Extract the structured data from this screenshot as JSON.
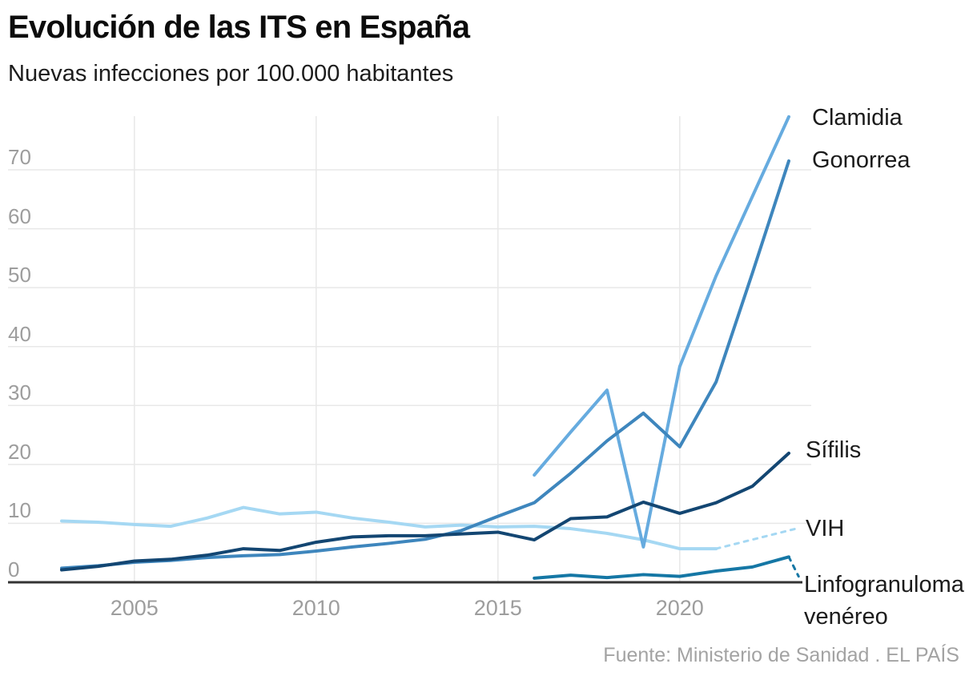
{
  "header": {
    "title": "Evolución de las ITS en España",
    "subtitle": "Nuevas infecciones por 100.000 habitantes"
  },
  "footer": {
    "source": "Fuente: Ministerio de Sanidad . EL PAÍS"
  },
  "chart_data": {
    "type": "line",
    "title": "Evolución de las ITS en España",
    "subtitle": "Nuevas infecciones por 100.000 habitantes",
    "xlabel": "",
    "ylabel": "",
    "ylim": [
      0,
      79
    ],
    "xlim": [
      2003,
      2023.3
    ],
    "grid": true,
    "legend_position": "right-edge-direct-labels",
    "yticks": [
      0,
      10,
      20,
      30,
      40,
      50,
      60,
      70
    ],
    "xticks": [
      2005,
      2010,
      2015,
      2020
    ],
    "style": {
      "grid_color": "#e8e8e8",
      "axis_color": "#333333",
      "tick_label_color": "#9d9d9d",
      "label_color": "#1b1b1b"
    },
    "series": [
      {
        "name": "VIH",
        "label": "VIH",
        "color": "#a5d8f3",
        "x": [
          2003,
          2004,
          2005,
          2006,
          2007,
          2008,
          2009,
          2010,
          2011,
          2012,
          2013,
          2014,
          2015,
          2016,
          2017,
          2018,
          2019,
          2020,
          2021
        ],
        "values": [
          10.4,
          10.2,
          9.8,
          9.5,
          10.9,
          12.7,
          11.6,
          11.9,
          10.9,
          10.2,
          9.4,
          9.7,
          9.4,
          9.5,
          9.1,
          8.3,
          7.2,
          5.7,
          5.7
        ],
        "dashed_extension": {
          "note": "provisional",
          "x": [
            2021,
            2023.2
          ],
          "values": [
            5.7,
            9.1
          ]
        }
      },
      {
        "name": "Clamidia",
        "label": "Clamidia",
        "color": "#66abdf",
        "x": [
          2016,
          2017,
          2018,
          2019,
          2020,
          2021,
          2022,
          2023
        ],
        "values": [
          18.2,
          25.5,
          32.6,
          6.0,
          36.6,
          52.0,
          65.5,
          79.0
        ]
      },
      {
        "name": "Gonorrea",
        "label": "Gonorrea",
        "color": "#3e86bd",
        "x": [
          2003,
          2004,
          2005,
          2006,
          2007,
          2008,
          2009,
          2010,
          2011,
          2012,
          2013,
          2014,
          2015,
          2016,
          2017,
          2018,
          2019,
          2020,
          2021,
          2022,
          2023
        ],
        "values": [
          2.4,
          2.8,
          3.4,
          3.7,
          4.2,
          4.5,
          4.7,
          5.3,
          6.0,
          6.6,
          7.3,
          8.8,
          11.2,
          13.5,
          18.5,
          24.0,
          28.7,
          23.0,
          34.0,
          52.5,
          71.5
        ]
      },
      {
        "name": "Sífilis",
        "label": "Sífilis",
        "color": "#134672",
        "x": [
          2003,
          2004,
          2005,
          2006,
          2007,
          2008,
          2009,
          2010,
          2011,
          2012,
          2013,
          2014,
          2015,
          2016,
          2017,
          2018,
          2019,
          2020,
          2021,
          2022,
          2023
        ],
        "values": [
          2.1,
          2.7,
          3.6,
          3.9,
          4.6,
          5.7,
          5.4,
          6.8,
          7.7,
          7.9,
          7.9,
          8.2,
          8.5,
          7.2,
          10.8,
          11.1,
          13.6,
          11.7,
          13.5,
          16.3,
          21.9
        ]
      },
      {
        "name": "Linfogranuloma venéreo",
        "label": "Linfogranuloma venéreo",
        "color": "#1577a5",
        "x": [
          2016,
          2017,
          2018,
          2019,
          2020,
          2021,
          2022,
          2023
        ],
        "values": [
          0.7,
          1.2,
          0.8,
          1.3,
          1.0,
          1.9,
          2.6,
          4.3
        ],
        "dashed_extension": {
          "note": "provisional",
          "x": [
            2023,
            2023.27
          ],
          "values": [
            4.3,
            1.0
          ]
        }
      }
    ]
  }
}
